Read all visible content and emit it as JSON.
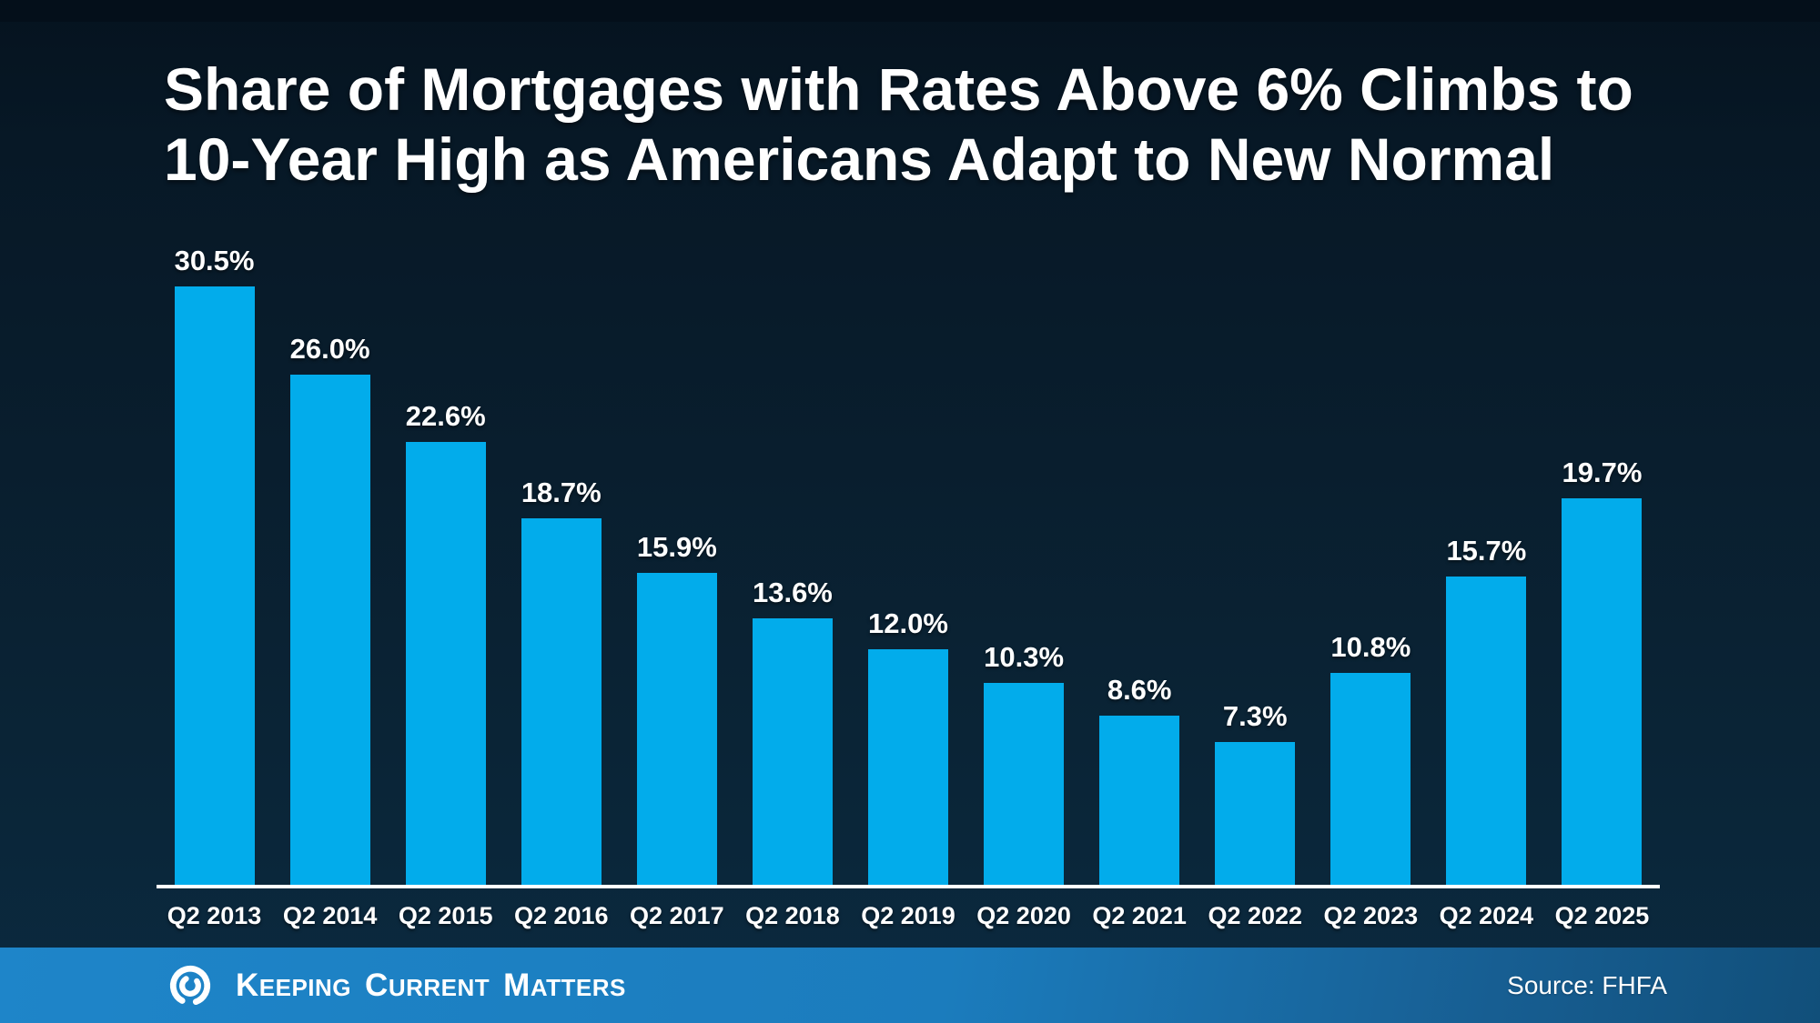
{
  "title": {
    "line1": "Share of Mortgages with Rates Above 6% Climbs to",
    "line2": "10-Year High as Americans Adapt to New Normal"
  },
  "chart_data": {
    "type": "bar",
    "title": "Share of Mortgages with Rates Above 6% Climbs to 10-Year High as Americans Adapt to New Normal",
    "categories": [
      "Q2 2013",
      "Q2 2014",
      "Q2 2015",
      "Q2 2016",
      "Q2 2017",
      "Q2 2018",
      "Q2 2019",
      "Q2 2020",
      "Q2 2021",
      "Q2 2022",
      "Q2 2023",
      "Q2 2024",
      "Q2 2025"
    ],
    "values": [
      30.5,
      26.0,
      22.6,
      18.7,
      15.9,
      13.6,
      12.0,
      10.3,
      8.6,
      7.3,
      10.8,
      15.7,
      19.7
    ],
    "value_labels": [
      "30.5%",
      "26.0%",
      "22.6%",
      "18.7%",
      "15.9%",
      "13.6%",
      "12.0%",
      "10.3%",
      "8.6%",
      "7.3%",
      "10.8%",
      "15.7%",
      "19.7%"
    ],
    "xlabel": "",
    "ylabel": "",
    "ylim": [
      0,
      32
    ],
    "grid": false,
    "legend": false,
    "bar_color": "#02aceb",
    "axis_line_color": "#ffffff",
    "label_color": "#ffffff"
  },
  "footer": {
    "brand_words": [
      "Keeping",
      "Current",
      "Matters"
    ],
    "logo_icon": "kcm-swirl-icon",
    "source_label": "Source: FHFA",
    "background_left": "#1e85c9",
    "background_right": "#114f7a"
  },
  "colors": {
    "background_top": "#05131f",
    "background_bottom": "#0b2a40",
    "top_strip": "#040f1a",
    "bar": "#02aceb",
    "text": "#ffffff"
  }
}
